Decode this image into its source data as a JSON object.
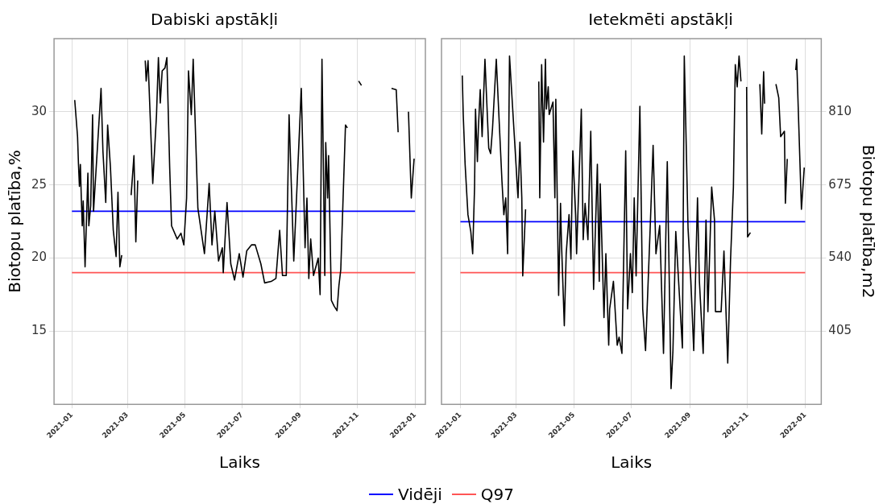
{
  "chart_data": [
    {
      "type": "line",
      "title": "Dabiski apstākļi",
      "xlabel": "Laiks",
      "ylabel": "Biotopu platība,%",
      "xlim": [
        "2020-12-13",
        "2022-01-12"
      ],
      "xticks": [
        "2021-01",
        "2021-03",
        "2021-05",
        "2021-07",
        "2021-09",
        "2021-11",
        "2022-01"
      ],
      "ylim": [
        10,
        35
      ],
      "yticks": [
        15,
        20,
        25,
        30
      ],
      "grid": true,
      "legend": "bottom",
      "marker": "none",
      "series": [
        {
          "color": "#000000",
          "x": [
            "2021-01-04",
            "2021-01-07",
            "2021-01-08",
            "2021-01-09",
            "2021-01-10",
            "2021-01-11",
            "2021-01-12",
            "2021-01-13",
            "2021-01-15",
            "2021-01-18",
            "2021-01-19",
            "2021-01-21",
            "2021-01-23",
            "2021-01-24",
            "2021-02-01",
            "2021-02-03",
            "2021-02-06",
            "2021-02-08",
            "2021-02-11",
            "2021-02-14",
            "2021-02-17",
            "2021-02-19",
            "2021-02-21",
            "2021-02-23",
            "2021-02-28",
            "2021-03-05",
            "2021-03-08",
            "2021-03-10",
            "2021-03-12",
            "2021-03-16",
            "2021-03-20",
            "2021-03-21",
            "2021-03-23",
            "2021-03-28",
            "2021-04-01",
            "2021-04-03",
            "2021-04-05",
            "2021-04-07",
            "2021-04-10",
            "2021-04-12",
            "2021-04-15",
            "2021-04-17",
            "2021-04-23",
            "2021-04-27",
            "2021-04-30",
            "2021-05-03",
            "2021-05-05",
            "2021-05-08",
            "2021-05-10",
            "2021-05-15",
            "2021-05-22",
            "2021-05-27",
            "2021-05-30",
            "2021-06-02",
            "2021-06-06",
            "2021-06-10",
            "2021-06-11",
            "2021-06-15",
            "2021-06-19",
            "2021-06-23",
            "2021-06-28",
            "2021-07-02",
            "2021-07-06",
            "2021-07-11",
            "2021-07-15",
            "2021-07-21",
            "2021-07-25",
            "2021-08-01",
            "2021-08-06",
            "2021-08-10",
            "2021-08-13",
            "2021-08-17",
            "2021-08-20",
            "2021-08-25",
            "2021-09-02",
            "2021-09-06",
            "2021-09-08",
            "2021-09-10",
            "2021-09-12",
            "2021-09-15",
            "2021-09-20",
            "2021-09-22",
            "2021-09-24",
            "2021-09-27",
            "2021-09-28",
            "2021-09-30",
            "2021-10-01",
            "2021-10-04",
            "2021-10-07",
            "2021-10-10",
            "2021-10-12",
            "2021-10-14",
            "2021-10-19",
            "2021-10-21",
            "2021-10-27",
            "2021-11-02",
            "2021-11-05",
            "2021-11-22",
            "2021-12-07",
            "2021-12-12",
            "2021-12-14",
            "2021-12-19",
            "2021-12-25",
            "2021-12-28",
            "2021-12-31"
          ],
          "values": [
            30.8,
            28.3,
            26.4,
            24.9,
            26.4,
            24.1,
            22.2,
            23.9,
            19.4,
            25.8,
            22.2,
            23.6,
            29.8,
            23.2,
            31.6,
            27.3,
            23.8,
            29.1,
            26.2,
            21.9,
            20.1,
            24.5,
            19.4,
            20.2,
            null,
            24.3,
            27.0,
            21.1,
            25.3,
            null,
            33.5,
            32.1,
            33.5,
            25.1,
            29.8,
            33.7,
            30.6,
            32.8,
            33.0,
            33.7,
            26.2,
            22.2,
            21.3,
            21.7,
            20.9,
            24.1,
            32.8,
            29.8,
            33.6,
            23.4,
            20.3,
            25.1,
            20.9,
            23.2,
            19.8,
            20.7,
            19.0,
            23.8,
            19.6,
            18.5,
            20.3,
            18.7,
            20.5,
            20.9,
            20.9,
            19.6,
            18.3,
            18.4,
            18.6,
            21.9,
            18.8,
            18.8,
            29.8,
            19.8,
            31.6,
            20.7,
            24.1,
            18.6,
            21.3,
            18.8,
            20.0,
            17.5,
            33.6,
            18.8,
            27.9,
            24.1,
            27.0,
            17.1,
            16.7,
            16.4,
            18.1,
            19.2,
            29.1,
            28.9,
            null,
            32.1,
            31.8,
            null,
            31.6,
            31.5,
            28.6,
            null,
            30.0,
            24.1,
            26.8
          ]
        },
        {
          "name": "Vidēji",
          "color": "#0000ff",
          "x": [
            "2021-01-01",
            "2022-01-01"
          ],
          "values": [
            23.2,
            23.2
          ]
        },
        {
          "name": "Q97",
          "color": "#ff5555",
          "x": [
            "2021-01-01",
            "2022-01-01"
          ],
          "values": [
            19.0,
            19.0
          ]
        }
      ]
    },
    {
      "type": "line",
      "title": "Ietekmēti apstākļi",
      "xlabel": "Laiks",
      "y2label": "Biotopu platība,m2",
      "xlim": [
        "2020-12-12",
        "2022-01-18"
      ],
      "xticks": [
        "2021-01",
        "2021-03",
        "2021-05",
        "2021-07",
        "2021-09",
        "2021-11",
        "2022-01"
      ],
      "y2lim": [
        270,
        945
      ],
      "y2ticks": [
        405,
        540,
        675,
        810
      ],
      "grid": true,
      "marker": "none",
      "series": [
        {
          "color": "#000000",
          "axis": "y2",
          "x": [
            "2021-01-03",
            "2021-01-04",
            "2021-01-06",
            "2021-01-09",
            "2021-01-12",
            "2021-01-14",
            "2021-01-16",
            "2021-01-17",
            "2021-01-19",
            "2021-01-20",
            "2021-01-22",
            "2021-01-24",
            "2021-01-27",
            "2021-01-31",
            "2021-02-02",
            "2021-02-04",
            "2021-02-08",
            "2021-02-14",
            "2021-02-16",
            "2021-02-18",
            "2021-02-20",
            "2021-02-22",
            "2021-03-03",
            "2021-03-05",
            "2021-03-07",
            "2021-03-08",
            "2021-03-11",
            "2021-03-17",
            "2021-03-25",
            "2021-03-26",
            "2021-03-28",
            "2021-03-30",
            "2021-04-01",
            "2021-04-02",
            "2021-04-04",
            "2021-04-05",
            "2021-04-09",
            "2021-04-11",
            "2021-04-12",
            "2021-04-15",
            "2021-04-17",
            "2021-04-18",
            "2021-04-21",
            "2021-04-23",
            "2021-04-26",
            "2021-04-28",
            "2021-04-30",
            "2021-05-03",
            "2021-05-04",
            "2021-05-09",
            "2021-05-11",
            "2021-05-13",
            "2021-05-16",
            "2021-05-19",
            "2021-05-22",
            "2021-05-26",
            "2021-05-28",
            "2021-05-29",
            "2021-06-02",
            "2021-06-04",
            "2021-06-07",
            "2021-06-08",
            "2021-06-12",
            "2021-06-16",
            "2021-06-18",
            "2021-06-21",
            "2021-06-25",
            "2021-06-27",
            "2021-06-30",
            "2021-07-02",
            "2021-07-04",
            "2021-07-06",
            "2021-07-10",
            "2021-07-13",
            "2021-07-16",
            "2021-07-21",
            "2021-07-24",
            "2021-07-27",
            "2021-07-31",
            "2021-08-04",
            "2021-08-08",
            "2021-08-12",
            "2021-08-14",
            "2021-08-17",
            "2021-08-20",
            "2021-08-24",
            "2021-08-26",
            "2021-08-30",
            "2021-09-02",
            "2021-09-05",
            "2021-09-09",
            "2021-09-11",
            "2021-09-15",
            "2021-09-18",
            "2021-09-20",
            "2021-09-24",
            "2021-09-27",
            "2021-09-28",
            "2021-10-04",
            "2021-10-07",
            "2021-10-11",
            "2021-10-14",
            "2021-10-17",
            "2021-10-19",
            "2021-10-21",
            "2021-10-23",
            "2021-10-25",
            "2021-10-28",
            "2021-10-31",
            "2021-11-01",
            "2021-11-04",
            "2021-11-09",
            "2021-11-14",
            "2021-11-16",
            "2021-11-18",
            "2021-11-19",
            "2021-11-23",
            "2021-12-01",
            "2021-12-04",
            "2021-12-06",
            "2021-12-10",
            "2021-12-11",
            "2021-12-13",
            "2021-12-17",
            "2021-12-22",
            "2021-12-23",
            "2021-12-28",
            "2021-12-31"
          ],
          "values": [
            877,
            805,
            713,
            620,
            589,
            548,
            671,
            815,
            718,
            779,
            851,
            764,
            907,
            743,
            733,
            779,
            907,
            682,
            620,
            651,
            548,
            913,
            651,
            754,
            651,
            507,
            630,
            null,
            866,
            651,
            897,
            754,
            907,
            815,
            856,
            805,
            828,
            651,
            833,
            471,
            641,
            569,
            415,
            548,
            620,
            538,
            738,
            620,
            548,
            815,
            574,
            641,
            574,
            774,
            482,
            713,
            497,
            677,
            430,
            548,
            379,
            446,
            497,
            379,
            394,
            364,
            738,
            446,
            548,
            476,
            651,
            507,
            820,
            446,
            369,
            600,
            748,
            548,
            600,
            364,
            718,
            299,
            369,
            589,
            497,
            374,
            913,
            594,
            497,
            369,
            651,
            497,
            364,
            610,
            441,
            671,
            610,
            441,
            441,
            553,
            346,
            538,
            671,
            897,
            856,
            913,
            866,
            null,
            856,
            579,
            587,
            null,
            861,
            769,
            884,
            825,
            null,
            861,
            836,
            764,
            774,
            641,
            723,
            null,
            887,
            907,
            630,
            707
          ]
        },
        {
          "color": "#0000ff",
          "axis": "y2",
          "x": [
            "2021-01-01",
            "2022-01-01"
          ],
          "values": [
            607,
            607
          ]
        },
        {
          "color": "#ff5555",
          "axis": "y2",
          "x": [
            "2021-01-01",
            "2022-01-01"
          ],
          "values": [
            513,
            513
          ]
        }
      ]
    }
  ]
}
